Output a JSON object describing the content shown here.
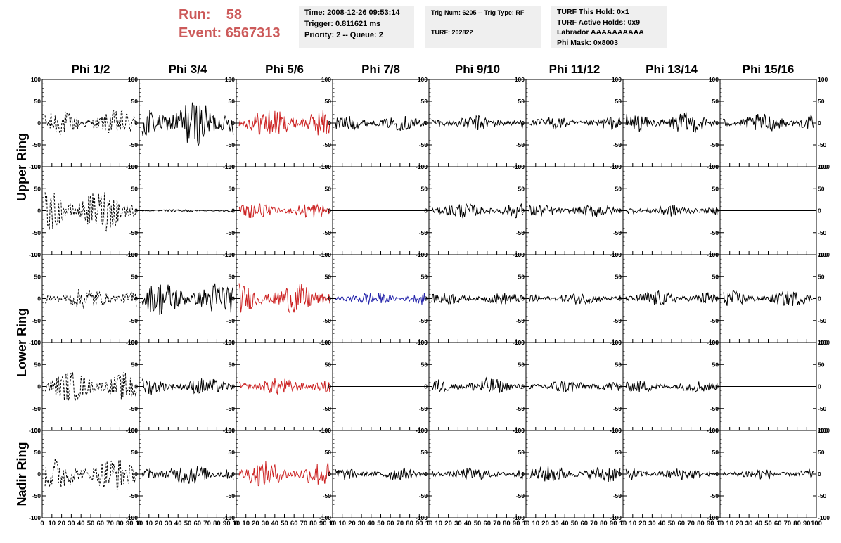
{
  "header": {
    "run_label": "Run:",
    "run_value": "58",
    "event_label": "Event:",
    "event_value": "6567313",
    "info1": [
      "Time: 2008-12-26 09:53:14",
      "Trigger: 0.811621 ms",
      "Priority: 2 -- Queue: 2"
    ],
    "info2": [
      "Trig Num: 6205 -- Trig Type: RF",
      "TURF: 202822"
    ],
    "info3": [
      "TURF This Hold: 0x1",
      "TURF Active Holds: 0x9",
      "Labrador AAAAAAAAAA",
      "Phi Mask: 0x8003"
    ]
  },
  "chart_data": {
    "type": "line",
    "title": "",
    "columns": [
      "Phi 1/2",
      "Phi 3/4",
      "Phi 5/6",
      "Phi 7/8",
      "Phi 9/10",
      "Phi 11/12",
      "Phi 13/14",
      "Phi 15/16"
    ],
    "ring_labels": [
      {
        "label": "Upper Ring",
        "rows": [
          0,
          1
        ]
      },
      {
        "label": "Lower Ring",
        "rows": [
          2,
          3
        ]
      },
      {
        "label": "Nadir Ring",
        "rows": [
          4
        ]
      }
    ],
    "xlim": [
      0,
      100
    ],
    "ylim": [
      -100,
      100
    ],
    "yticks": [
      -100,
      -50,
      0,
      50,
      100
    ],
    "xticks": [
      "0",
      "10",
      "20",
      "30",
      "40",
      "50",
      "60",
      "70",
      "80",
      "90",
      "10"
    ],
    "xticks_last": [
      "0",
      "10",
      "20",
      "30",
      "40",
      "50",
      "60",
      "70",
      "80",
      "90",
      "100"
    ],
    "trace_color_legend": {
      "black": "#000000",
      "red": "#cc2222",
      "blue": "#2222aa"
    },
    "panels": [
      [
        {
          "color": "#000000",
          "dash": true,
          "amp": 30
        },
        {
          "color": "#000000",
          "amp": 55
        },
        {
          "color": "#cc2222",
          "amp": 35
        },
        {
          "color": "#000000",
          "amp": 18
        },
        {
          "color": "#000000",
          "amp": 18
        },
        {
          "color": "#000000",
          "amp": 15
        },
        {
          "color": "#000000",
          "amp": 25
        },
        {
          "color": "#000000",
          "amp": 22
        }
      ],
      [
        {
          "color": "#000000",
          "dash": true,
          "amp": 50
        },
        {
          "color": "#000000",
          "amp": 3
        },
        {
          "color": "#cc2222",
          "amp": 18
        },
        {
          "color": "#000000",
          "amp": 0
        },
        {
          "color": "#000000",
          "amp": 18
        },
        {
          "color": "#000000",
          "amp": 15
        },
        {
          "color": "#000000",
          "amp": 14
        },
        {
          "color": "#000000",
          "amp": 0
        }
      ],
      [
        {
          "color": "#000000",
          "dash": true,
          "amp": 25
        },
        {
          "color": "#000000",
          "amp": 40
        },
        {
          "color": "#cc2222",
          "amp": 35
        },
        {
          "color": "#2222aa",
          "amp": 15
        },
        {
          "color": "#000000",
          "amp": 14
        },
        {
          "color": "#000000",
          "amp": 14
        },
        {
          "color": "#000000",
          "amp": 18
        },
        {
          "color": "#000000",
          "amp": 18
        }
      ],
      [
        {
          "color": "#000000",
          "dash": true,
          "amp": 35
        },
        {
          "color": "#000000",
          "amp": 20
        },
        {
          "color": "#cc2222",
          "amp": 20
        },
        {
          "color": "#000000",
          "amp": 0
        },
        {
          "color": "#000000",
          "amp": 20
        },
        {
          "color": "#000000",
          "amp": 16
        },
        {
          "color": "#000000",
          "amp": 14
        },
        {
          "color": "#000000",
          "amp": 0
        }
      ],
      [
        {
          "color": "#000000",
          "dash": true,
          "amp": 40
        },
        {
          "color": "#000000",
          "amp": 25
        },
        {
          "color": "#cc2222",
          "amp": 30
        },
        {
          "color": "#000000",
          "amp": 15
        },
        {
          "color": "#000000",
          "amp": 15
        },
        {
          "color": "#000000",
          "amp": 20
        },
        {
          "color": "#000000",
          "amp": 15
        },
        {
          "color": "#000000",
          "amp": 13
        }
      ]
    ]
  }
}
